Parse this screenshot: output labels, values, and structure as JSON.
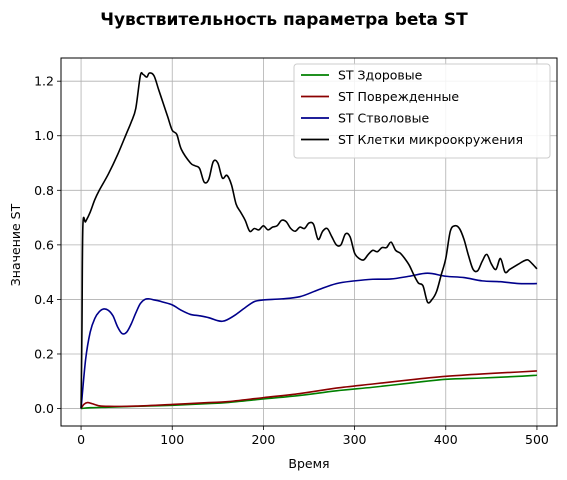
{
  "chart_data": {
    "type": "line",
    "title": "Чувствительность параметра beta ST",
    "xlabel": "Время",
    "ylabel": "Значение ST",
    "xlim": [
      -22,
      522
    ],
    "ylim": [
      -0.064,
      1.285
    ],
    "xticks": [
      0,
      100,
      200,
      300,
      400,
      500
    ],
    "yticks": [
      0.0,
      0.2,
      0.4,
      0.6,
      0.8,
      1.0,
      1.2
    ],
    "xtick_labels": [
      "0",
      "100",
      "200",
      "300",
      "400",
      "500"
    ],
    "ytick_labels": [
      "0.0",
      "0.2",
      "0.4",
      "0.6",
      "0.8",
      "1.0",
      "1.2"
    ],
    "grid": true,
    "legend_position": "top-right",
    "series": [
      {
        "name": "ST Здоровые",
        "color": "#008000",
        "x": [
          0,
          10,
          30,
          60,
          100,
          140,
          160,
          200,
          240,
          280,
          320,
          360,
          400,
          440,
          480,
          500
        ],
        "y": [
          0.0,
          0.003,
          0.005,
          0.008,
          0.012,
          0.018,
          0.022,
          0.035,
          0.048,
          0.065,
          0.078,
          0.093,
          0.107,
          0.112,
          0.118,
          0.122
        ]
      },
      {
        "name": "ST Поврежденные",
        "color": "#8b0000",
        "x": [
          0,
          3,
          7,
          12,
          20,
          30,
          60,
          100,
          140,
          160,
          200,
          240,
          280,
          320,
          360,
          400,
          440,
          480,
          500
        ],
        "y": [
          0.0,
          0.015,
          0.022,
          0.018,
          0.01,
          0.008,
          0.009,
          0.015,
          0.022,
          0.025,
          0.04,
          0.055,
          0.075,
          0.09,
          0.105,
          0.118,
          0.127,
          0.134,
          0.138
        ]
      },
      {
        "name": "ST Стволовые",
        "color": "#00008b",
        "x": [
          0,
          5,
          10,
          15,
          20,
          25,
          30,
          35,
          40,
          45,
          50,
          55,
          60,
          65,
          70,
          75,
          80,
          85,
          90,
          100,
          110,
          120,
          130,
          140,
          150,
          155,
          160,
          170,
          180,
          190,
          200,
          220,
          240,
          260,
          280,
          300,
          320,
          340,
          360,
          380,
          400,
          420,
          440,
          460,
          480,
          500
        ],
        "y": [
          0.0,
          0.18,
          0.28,
          0.33,
          0.355,
          0.365,
          0.36,
          0.34,
          0.3,
          0.275,
          0.28,
          0.31,
          0.35,
          0.385,
          0.4,
          0.402,
          0.398,
          0.395,
          0.39,
          0.38,
          0.36,
          0.345,
          0.34,
          0.333,
          0.322,
          0.32,
          0.325,
          0.345,
          0.37,
          0.392,
          0.398,
          0.402,
          0.41,
          0.435,
          0.458,
          0.468,
          0.474,
          0.475,
          0.485,
          0.496,
          0.485,
          0.48,
          0.468,
          0.465,
          0.458,
          0.458
        ]
      },
      {
        "name": "ST Клетки микроокружения",
        "color": "#000000",
        "x": [
          0,
          1,
          2,
          5,
          10,
          15,
          20,
          30,
          40,
          50,
          55,
          60,
          65,
          68,
          72,
          75,
          80,
          85,
          90,
          95,
          100,
          105,
          110,
          120,
          125,
          130,
          135,
          140,
          145,
          150,
          155,
          160,
          165,
          170,
          175,
          180,
          185,
          190,
          195,
          200,
          205,
          210,
          215,
          220,
          225,
          230,
          235,
          240,
          245,
          250,
          255,
          260,
          265,
          270,
          275,
          280,
          285,
          290,
          295,
          300,
          305,
          310,
          315,
          320,
          325,
          330,
          335,
          340,
          345,
          350,
          355,
          360,
          365,
          370,
          375,
          380,
          385,
          390,
          395,
          400,
          405,
          410,
          415,
          420,
          425,
          430,
          435,
          440,
          445,
          450,
          455,
          460,
          465,
          470,
          475,
          480,
          485,
          490,
          495,
          500
        ],
        "y": [
          0.0,
          0.3,
          0.67,
          0.685,
          0.72,
          0.765,
          0.8,
          0.86,
          0.93,
          1.01,
          1.05,
          1.1,
          1.22,
          1.225,
          1.215,
          1.23,
          1.22,
          1.17,
          1.12,
          1.07,
          1.02,
          1.005,
          0.95,
          0.9,
          0.89,
          0.88,
          0.83,
          0.84,
          0.905,
          0.9,
          0.845,
          0.855,
          0.82,
          0.75,
          0.72,
          0.69,
          0.65,
          0.66,
          0.655,
          0.67,
          0.655,
          0.665,
          0.67,
          0.69,
          0.685,
          0.66,
          0.65,
          0.665,
          0.66,
          0.68,
          0.675,
          0.62,
          0.65,
          0.66,
          0.63,
          0.6,
          0.6,
          0.64,
          0.63,
          0.57,
          0.55,
          0.545,
          0.565,
          0.58,
          0.575,
          0.59,
          0.59,
          0.61,
          0.58,
          0.57,
          0.55,
          0.525,
          0.49,
          0.46,
          0.45,
          0.39,
          0.4,
          0.43,
          0.49,
          0.55,
          0.65,
          0.67,
          0.66,
          0.62,
          0.56,
          0.51,
          0.505,
          0.54,
          0.565,
          0.53,
          0.51,
          0.55,
          0.5,
          0.51,
          0.52,
          0.53,
          0.54,
          0.545,
          0.53,
          0.512
        ]
      }
    ]
  }
}
